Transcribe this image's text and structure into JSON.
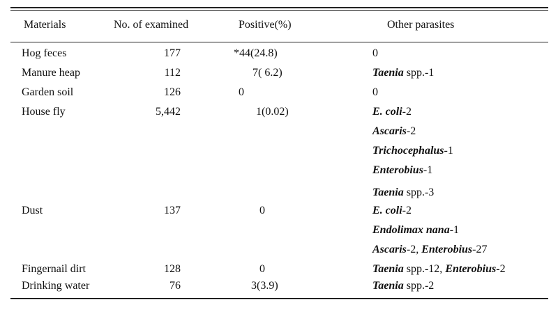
{
  "headers": {
    "materials": "Materials",
    "examined": "No. of examined",
    "positive": "Positive(%)",
    "other": "Other parasites"
  },
  "rows": [
    {
      "material": "Hog feces",
      "examined": "177",
      "positive": "*44(24.8)",
      "other": [
        {
          "italic": "",
          "text": "0"
        }
      ]
    },
    {
      "material": "Manure heap",
      "examined": "112",
      "positive": "7( 6.2)",
      "other": [
        {
          "italic": "Taenia",
          "text": " spp.-1"
        }
      ]
    },
    {
      "material": "Garden soil",
      "examined": "126",
      "positive": "0",
      "other": [
        {
          "italic": "",
          "text": "0"
        }
      ]
    },
    {
      "material": "House fly",
      "examined": "5,442",
      "positive": "1(0.02)",
      "other": [
        {
          "italic": "E. coli",
          "text": "-2"
        },
        {
          "italic": "Ascaris",
          "text": "-2"
        },
        {
          "italic": "Trichocephalus",
          "text": "-1"
        },
        {
          "italic": "Enterobius",
          "text": "-1"
        },
        {
          "italic": "Taenia",
          "text": " spp.-3"
        }
      ]
    },
    {
      "material": "Dust",
      "examined": "137",
      "positive": "0",
      "other": [
        {
          "italic": "E. coli",
          "text": "-2"
        },
        {
          "italic": "Endolimax nana",
          "text": "-1"
        },
        {
          "italic": "Ascaris",
          "text": "-2,  ",
          "italic2": "Enterobius",
          "text2": "-27"
        }
      ]
    },
    {
      "material": "Fingernail dirt",
      "examined": "128",
      "positive": "0",
      "other": [
        {
          "italic": "Taenia",
          "text": " spp.-12,  ",
          "italic2": "Enterobius",
          "text2": "-2"
        }
      ]
    },
    {
      "material": "Drinking water",
      "examined": "76",
      "positive": "3(3.9)",
      "other": [
        {
          "italic": "Taenia",
          "text": " spp.-2"
        }
      ]
    }
  ]
}
